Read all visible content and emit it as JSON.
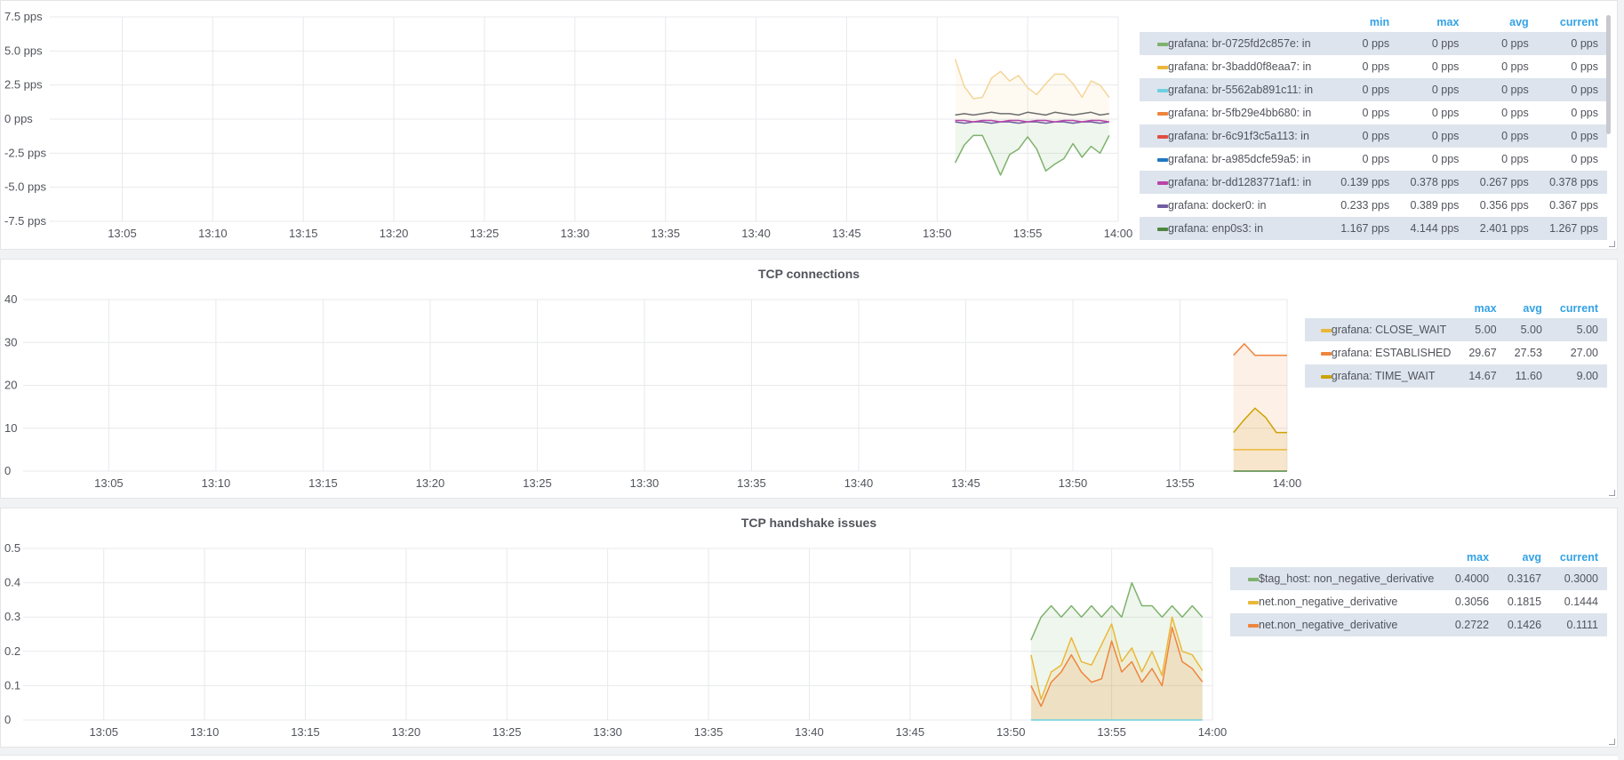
{
  "panels": [
    {
      "title": "",
      "legend": {
        "columns": [
          "min",
          "max",
          "avg",
          "current"
        ],
        "rows": [
          {
            "name": "grafana: br-0725fd2c857e: in",
            "color": "#7eb26d",
            "min": "0 pps",
            "max": "0 pps",
            "avg": "0 pps",
            "current": "0 pps"
          },
          {
            "name": "grafana: br-3badd0f8eaa7: in",
            "color": "#eab839",
            "min": "0 pps",
            "max": "0 pps",
            "avg": "0 pps",
            "current": "0 pps"
          },
          {
            "name": "grafana: br-5562ab891c11: in",
            "color": "#6ed0e0",
            "min": "0 pps",
            "max": "0 pps",
            "avg": "0 pps",
            "current": "0 pps"
          },
          {
            "name": "grafana: br-5fb29e4bb680: in",
            "color": "#ef843c",
            "min": "0 pps",
            "max": "0 pps",
            "avg": "0 pps",
            "current": "0 pps"
          },
          {
            "name": "grafana: br-6c91f3c5a113: in",
            "color": "#e24d42",
            "min": "0 pps",
            "max": "0 pps",
            "avg": "0 pps",
            "current": "0 pps"
          },
          {
            "name": "grafana: br-a985dcfe59a5: in",
            "color": "#1f78c1",
            "min": "0 pps",
            "max": "0 pps",
            "avg": "0 pps",
            "current": "0 pps"
          },
          {
            "name": "grafana: br-dd1283771af1: in",
            "color": "#ba43a9",
            "min": "0.139 pps",
            "max": "0.378 pps",
            "avg": "0.267 pps",
            "current": "0.378 pps"
          },
          {
            "name": "grafana: docker0: in",
            "color": "#705da0",
            "min": "0.233 pps",
            "max": "0.389 pps",
            "avg": "0.356 pps",
            "current": "0.367 pps"
          },
          {
            "name": "grafana: enp0s3: in",
            "color": "#508642",
            "min": "1.167 pps",
            "max": "4.144 pps",
            "avg": "2.401 pps",
            "current": "1.267 pps"
          }
        ]
      }
    },
    {
      "title": "TCP connections",
      "legend": {
        "columns": [
          "max",
          "avg",
          "current"
        ],
        "rows": [
          {
            "name": "grafana: CLOSE_WAIT",
            "color": "#eab839",
            "max": "5.00",
            "avg": "5.00",
            "current": "5.00"
          },
          {
            "name": "grafana: ESTABLISHED",
            "color": "#ef843c",
            "max": "29.67",
            "avg": "27.53",
            "current": "27.00"
          },
          {
            "name": "grafana: TIME_WAIT",
            "color": "#cca300",
            "max": "14.67",
            "avg": "11.60",
            "current": "9.00"
          }
        ]
      }
    },
    {
      "title": "TCP handshake issues",
      "legend": {
        "columns": [
          "max",
          "avg",
          "current"
        ],
        "rows": [
          {
            "name": "$tag_host: non_negative_derivative",
            "color": "#7eb26d",
            "max": "0.4000",
            "avg": "0.3167",
            "current": "0.3000"
          },
          {
            "name": "net.non_negative_derivative",
            "color": "#eab839",
            "max": "0.3056",
            "avg": "0.1815",
            "current": "0.1444"
          },
          {
            "name": "net.non_negative_derivative",
            "color": "#ef843c",
            "max": "0.2722",
            "avg": "0.1426",
            "current": "0.1111"
          }
        ]
      }
    }
  ],
  "chart_data": [
    {
      "type": "line",
      "title": "",
      "x_ticks": [
        "13:05",
        "13:10",
        "13:15",
        "13:20",
        "13:25",
        "13:30",
        "13:35",
        "13:40",
        "13:45",
        "13:50",
        "13:55",
        "14:00"
      ],
      "x_range": [
        "13:01",
        "14:00"
      ],
      "y_ticks": [
        "7.5 pps",
        "5.0 pps",
        "2.5 pps",
        "0 pps",
        "-2.5 pps",
        "-5.0 pps",
        "-7.5 pps"
      ],
      "ylim": [
        -7.5,
        7.5
      ],
      "x_time": [
        "13:51",
        "13:51:30",
        "13:52",
        "13:52:30",
        "13:53",
        "13:53:30",
        "13:54",
        "13:54:30",
        "13:55",
        "13:55:30",
        "13:56",
        "13:56:30",
        "13:57",
        "13:57:30",
        "13:58",
        "13:58:30",
        "13:59",
        "13:59:30"
      ],
      "series": [
        {
          "color": "#f4d598",
          "fill": true,
          "values": [
            4.4,
            2.4,
            1.5,
            1.6,
            3.0,
            3.5,
            2.8,
            3.2,
            2.3,
            1.8,
            2.6,
            3.3,
            3.3,
            2.6,
            1.6,
            2.8,
            2.5,
            1.6
          ]
        },
        {
          "color": "#7eb26d",
          "fill": true,
          "values": [
            -3.2,
            -1.9,
            -1.2,
            -1.2,
            -2.6,
            -4.1,
            -2.6,
            -2.2,
            -1.3,
            -2.2,
            -3.8,
            -3.3,
            -2.9,
            -1.8,
            -2.8,
            -2.0,
            -2.5,
            -1.2
          ]
        },
        {
          "color": "#6d6d6d",
          "fill": false,
          "values": [
            0.3,
            0.4,
            0.3,
            0.4,
            0.5,
            0.4,
            0.4,
            0.3,
            0.5,
            0.4,
            0.3,
            0.5,
            0.4,
            0.3,
            0.4,
            0.5,
            0.3,
            0.4
          ]
        },
        {
          "color": "#705da0",
          "fill": false,
          "values": [
            -0.2,
            -0.3,
            -0.2,
            -0.2,
            -0.3,
            -0.2,
            -0.2,
            -0.3,
            -0.2,
            -0.2,
            -0.3,
            -0.2,
            -0.2,
            -0.3,
            -0.2,
            -0.2,
            -0.3,
            -0.2
          ]
        },
        {
          "color": "#ba43a9",
          "fill": false,
          "values": [
            -0.1,
            -0.1,
            -0.2,
            -0.1,
            -0.1,
            -0.2,
            -0.1,
            -0.1,
            -0.2,
            -0.1,
            -0.1,
            -0.2,
            -0.1,
            -0.1,
            -0.2,
            -0.1,
            -0.1,
            -0.2
          ]
        }
      ]
    },
    {
      "type": "line",
      "title": "TCP connections",
      "x_ticks": [
        "13:05",
        "13:10",
        "13:15",
        "13:20",
        "13:25",
        "13:30",
        "13:35",
        "13:40",
        "13:45",
        "13:50",
        "13:55",
        "14:00"
      ],
      "x_range": [
        "13:01",
        "14:00"
      ],
      "y_ticks": [
        "40",
        "30",
        "20",
        "10",
        "0"
      ],
      "ylim": [
        0,
        40
      ],
      "x_time": [
        "13:57:30",
        "13:58",
        "13:58:30",
        "13:59",
        "13:59:30",
        "14:00"
      ],
      "series": [
        {
          "name": "grafana: ESTABLISHED",
          "color": "#ef843c",
          "fill": true,
          "values": [
            27,
            29.67,
            27,
            27,
            27,
            27
          ]
        },
        {
          "name": "grafana: TIME_WAIT",
          "color": "#cca300",
          "fill": true,
          "values": [
            9,
            12,
            14.67,
            12.5,
            9,
            9
          ]
        },
        {
          "name": "grafana: CLOSE_WAIT",
          "color": "#eab839",
          "fill": false,
          "values": [
            5,
            5,
            5,
            5,
            5,
            5
          ]
        },
        {
          "color": "#508642",
          "fill": false,
          "values": [
            0,
            0,
            0,
            0,
            0,
            0
          ]
        }
      ]
    },
    {
      "type": "line",
      "title": "TCP handshake issues",
      "x_ticks": [
        "13:05",
        "13:10",
        "13:15",
        "13:20",
        "13:25",
        "13:30",
        "13:35",
        "13:40",
        "13:45",
        "13:50",
        "13:55",
        "14:00"
      ],
      "x_range": [
        "13:01",
        "14:00"
      ],
      "y_ticks": [
        "0.5",
        "0.4",
        "0.3",
        "0.2",
        "0.1",
        "0"
      ],
      "ylim": [
        0,
        0.5
      ],
      "x_time": [
        "13:51",
        "13:51:30",
        "13:52",
        "13:52:30",
        "13:53",
        "13:53:30",
        "13:54",
        "13:54:30",
        "13:55",
        "13:55:30",
        "13:56",
        "13:56:30",
        "13:57",
        "13:57:30",
        "13:58",
        "13:58:30",
        "13:59",
        "13:59:30"
      ],
      "series": [
        {
          "name": "$tag_host: non_negative_derivative",
          "color": "#7eb26d",
          "fill": true,
          "values": [
            0.233,
            0.3,
            0.333,
            0.3,
            0.333,
            0.3,
            0.333,
            0.3,
            0.333,
            0.3,
            0.4,
            0.333,
            0.333,
            0.3,
            0.333,
            0.3,
            0.333,
            0.3
          ]
        },
        {
          "name": "net.non_negative_derivative",
          "color": "#eab839",
          "fill": true,
          "values": [
            0.19,
            0.06,
            0.14,
            0.16,
            0.24,
            0.17,
            0.16,
            0.22,
            0.28,
            0.17,
            0.21,
            0.14,
            0.2,
            0.13,
            0.3,
            0.2,
            0.19,
            0.144
          ]
        },
        {
          "name": "net.non_negative_derivative",
          "color": "#ef843c",
          "fill": true,
          "values": [
            0.1,
            0.04,
            0.11,
            0.14,
            0.19,
            0.14,
            0.11,
            0.12,
            0.23,
            0.14,
            0.17,
            0.11,
            0.15,
            0.1,
            0.27,
            0.17,
            0.15,
            0.111
          ]
        },
        {
          "color": "#6ed0e0",
          "fill": false,
          "values": [
            0,
            0,
            0,
            0,
            0,
            0,
            0,
            0,
            0,
            0,
            0,
            0,
            0,
            0,
            0,
            0,
            0,
            0
          ]
        }
      ]
    }
  ]
}
